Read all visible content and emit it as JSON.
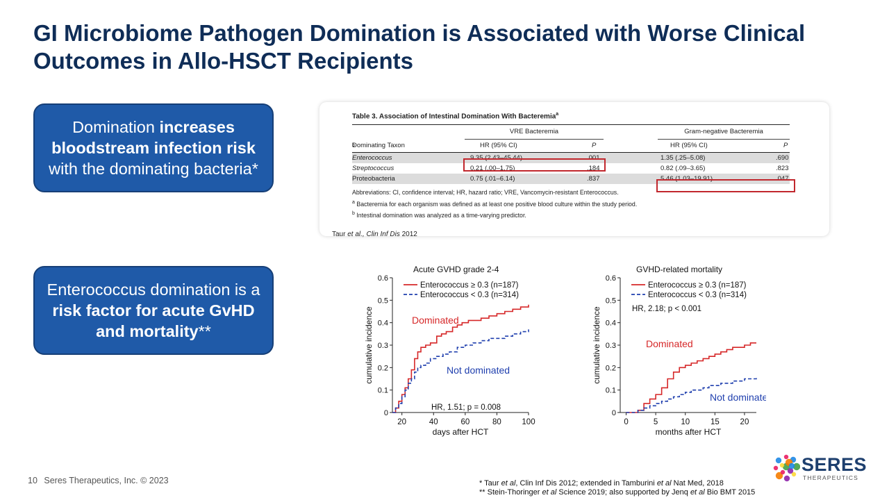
{
  "title": "GI Microbiome Pathogen Domination is Associated with Worse Clinical Outcomes in Allo-HSCT Recipients",
  "callout1": {
    "p1": "Domination ",
    "p2": "increases bloodstream infection risk",
    "p3": " with the dominating bacteria*"
  },
  "callout2": {
    "p1": "Enterococcus domination is a ",
    "p2": "risk factor for acute GvHD and mortality",
    "p3": "**"
  },
  "table": {
    "title": "Table 3.   Association of Intestinal Domination With Bacteremia",
    "title_sup": "a",
    "group1": "VRE Bacteremia",
    "group2": "Gram-negative Bacteremia",
    "col_taxon": "Dominating Taxon",
    "col_taxon_sup": "b",
    "col_hr": "HR (95% CI)",
    "col_p": "P",
    "rows": [
      {
        "taxon": "Enterococcus",
        "hr1": "9.35 (2.43–45.44)",
        "p1": ".001",
        "hr2": "1.35 (.25–5.08)",
        "p2": ".690"
      },
      {
        "taxon": "Streptococcus",
        "hr1": "0.21 (.00–1.75)",
        "p1": ".184",
        "hr2": "0.82 (.09–3.65)",
        "p2": ".823"
      },
      {
        "taxon": "Proteobacteria",
        "hr1": "0.75 (.01–6.14)",
        "p1": ".837",
        "hr2": "5.46 (1.03–19.91)",
        "p2": ".047"
      }
    ],
    "note1": "Abbreviations: CI, confidence interval; HR, hazard ratio; VRE, Vancomycin-resistant Enterococcus.",
    "note2": "Bacteremia for each organism was defined as at least one positive blood culture within the study period.",
    "note2_sup": "a",
    "note3": "Intestinal domination was analyzed as a time-varying predictor.",
    "note3_sup": "b"
  },
  "table_citation": {
    "a": "Taur ",
    "b": "et al., Clin Inf Dis",
    "c": " 2012"
  },
  "chart_data": [
    {
      "type": "line",
      "title": "Acute GVHD grade 2-4",
      "xlabel": "days after HCT",
      "ylabel": "cumulative incidence",
      "xlim": [
        14,
        100
      ],
      "ylim": [
        0,
        0.6
      ],
      "x_ticks": [
        "20",
        "40",
        "60",
        "80",
        "100"
      ],
      "y_ticks": [
        "0",
        "0.1",
        "0.2",
        "0.3",
        "0.4",
        "0.5",
        "0.6"
      ],
      "series": [
        {
          "name": "Enterococcus ≥ 0.3 (n=187)",
          "color": "#d62728",
          "style": "solid",
          "points": [
            [
              14,
              0
            ],
            [
              16,
              0.02
            ],
            [
              18,
              0.05
            ],
            [
              20,
              0.08
            ],
            [
              22,
              0.11
            ],
            [
              24,
              0.15
            ],
            [
              26,
              0.19
            ],
            [
              28,
              0.24
            ],
            [
              30,
              0.27
            ],
            [
              32,
              0.29
            ],
            [
              35,
              0.3
            ],
            [
              38,
              0.31
            ],
            [
              42,
              0.34
            ],
            [
              45,
              0.35
            ],
            [
              48,
              0.36
            ],
            [
              52,
              0.38
            ],
            [
              55,
              0.39
            ],
            [
              58,
              0.4
            ],
            [
              62,
              0.41
            ],
            [
              66,
              0.41
            ],
            [
              70,
              0.42
            ],
            [
              75,
              0.43
            ],
            [
              80,
              0.44
            ],
            [
              85,
              0.45
            ],
            [
              90,
              0.46
            ],
            [
              95,
              0.47
            ],
            [
              100,
              0.48
            ]
          ]
        },
        {
          "name": "Enterococcus < 0.3 (n=314)",
          "color": "#1f3fae",
          "style": "dashed",
          "points": [
            [
              14,
              0
            ],
            [
              16,
              0.02
            ],
            [
              18,
              0.04
            ],
            [
              20,
              0.07
            ],
            [
              22,
              0.1
            ],
            [
              24,
              0.13
            ],
            [
              26,
              0.15
            ],
            [
              28,
              0.18
            ],
            [
              30,
              0.2
            ],
            [
              32,
              0.21
            ],
            [
              35,
              0.22
            ],
            [
              38,
              0.24
            ],
            [
              42,
              0.25
            ],
            [
              46,
              0.26
            ],
            [
              50,
              0.27
            ],
            [
              55,
              0.29
            ],
            [
              60,
              0.3
            ],
            [
              65,
              0.31
            ],
            [
              70,
              0.32
            ],
            [
              75,
              0.33
            ],
            [
              80,
              0.33
            ],
            [
              85,
              0.34
            ],
            [
              90,
              0.35
            ],
            [
              95,
              0.36
            ],
            [
              100,
              0.37
            ]
          ]
        }
      ],
      "annotations": {
        "dominated": "Dominated",
        "not_dominated": "Not dominated",
        "hr": "HR, 1.51; p = 0.008"
      }
    },
    {
      "type": "line",
      "title": "GVHD-related mortality",
      "xlabel": "months after HCT",
      "ylabel": "cumulative incidence",
      "xlim": [
        -1,
        22
      ],
      "ylim": [
        0,
        0.6
      ],
      "x_ticks": [
        "0",
        "5",
        "10",
        "15",
        "20"
      ],
      "y_ticks": [
        "0",
        "0.1",
        "0.2",
        "0.3",
        "0.4",
        "0.5",
        "0.6"
      ],
      "series": [
        {
          "name": "Enterococcus ≥ 0.3 (n=187)",
          "color": "#d62728",
          "style": "solid",
          "points": [
            [
              0,
              0
            ],
            [
              1,
              0
            ],
            [
              2,
              0.01
            ],
            [
              3,
              0.04
            ],
            [
              4,
              0.06
            ],
            [
              5,
              0.08
            ],
            [
              6,
              0.11
            ],
            [
              7,
              0.15
            ],
            [
              8,
              0.18
            ],
            [
              9,
              0.2
            ],
            [
              10,
              0.21
            ],
            [
              11,
              0.22
            ],
            [
              12,
              0.23
            ],
            [
              13,
              0.24
            ],
            [
              14,
              0.25
            ],
            [
              15,
              0.26
            ],
            [
              16,
              0.27
            ],
            [
              17,
              0.28
            ],
            [
              18,
              0.29
            ],
            [
              19,
              0.29
            ],
            [
              20,
              0.3
            ],
            [
              21,
              0.31
            ],
            [
              22,
              0.31
            ]
          ]
        },
        {
          "name": "Enterococcus < 0.3 (n=314)",
          "color": "#1f3fae",
          "style": "dashed",
          "points": [
            [
              0,
              0
            ],
            [
              1,
              0
            ],
            [
              2,
              0.01
            ],
            [
              3,
              0.02
            ],
            [
              4,
              0.03
            ],
            [
              5,
              0.04
            ],
            [
              6,
              0.05
            ],
            [
              7,
              0.06
            ],
            [
              8,
              0.07
            ],
            [
              9,
              0.08
            ],
            [
              10,
              0.09
            ],
            [
              11,
              0.1
            ],
            [
              12,
              0.1
            ],
            [
              13,
              0.11
            ],
            [
              14,
              0.12
            ],
            [
              15,
              0.12
            ],
            [
              16,
              0.13
            ],
            [
              17,
              0.13
            ],
            [
              18,
              0.14
            ],
            [
              19,
              0.14
            ],
            [
              20,
              0.15
            ],
            [
              21,
              0.15
            ],
            [
              22,
              0.16
            ]
          ]
        }
      ],
      "annotations": {
        "dominated": "Dominated",
        "not_dominated": "Not dominated",
        "hr": "HR, 2.18; p < 0.001"
      }
    }
  ],
  "footer": {
    "page": "10",
    "company": "Seres Therapeutics, Inc. © 2023"
  },
  "refs": {
    "r1a": "* Taur ",
    "r1b": "et al",
    "r1c": ", Clin Inf Dis 2012; extended in Tamburini ",
    "r1d": "et al",
    "r1e": " Nat Med, 2018",
    "r2a": "** Stein-Thoringer ",
    "r2b": "et al",
    "r2c": " Science 2019; also supported by Jenq ",
    "r2d": "et al",
    "r2e": " Bio BMT 2015"
  },
  "logo": {
    "word": "SERES",
    "sub": "THERAPEUTICS",
    "colors": [
      "#e91e63",
      "#1e88e5",
      "#43a047",
      "#fdd835",
      "#8e24aa",
      "#f57c00"
    ]
  }
}
